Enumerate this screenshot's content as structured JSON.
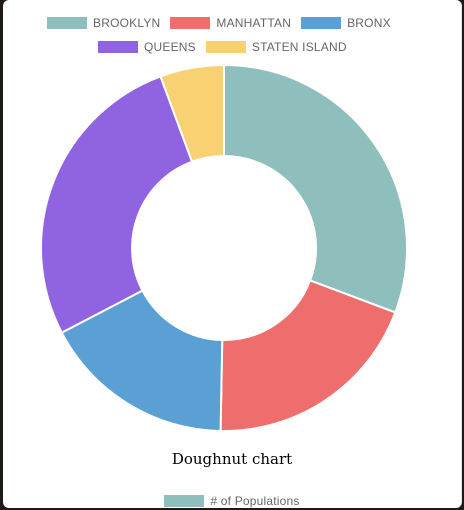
{
  "chart_data": {
    "type": "doughnut",
    "title": "",
    "categories": [
      "BROOKLYN",
      "MANHATTAN",
      "BRONX",
      "QUEENS",
      "STATEN ISLAND"
    ],
    "series": [
      {
        "name": "# of Populations",
        "values": [
          2.56,
          1.63,
          1.42,
          2.25,
          0.47
        ],
        "colors": [
          "#8fbfbd",
          "#ed6e6c",
          "#5aa0d5",
          "#9064e0",
          "#f8d173"
        ]
      }
    ],
    "legend_position": "top"
  },
  "caption": "Doughnut chart",
  "series_legend": {
    "label": "# of Populations",
    "color": "#8fbfbd"
  }
}
